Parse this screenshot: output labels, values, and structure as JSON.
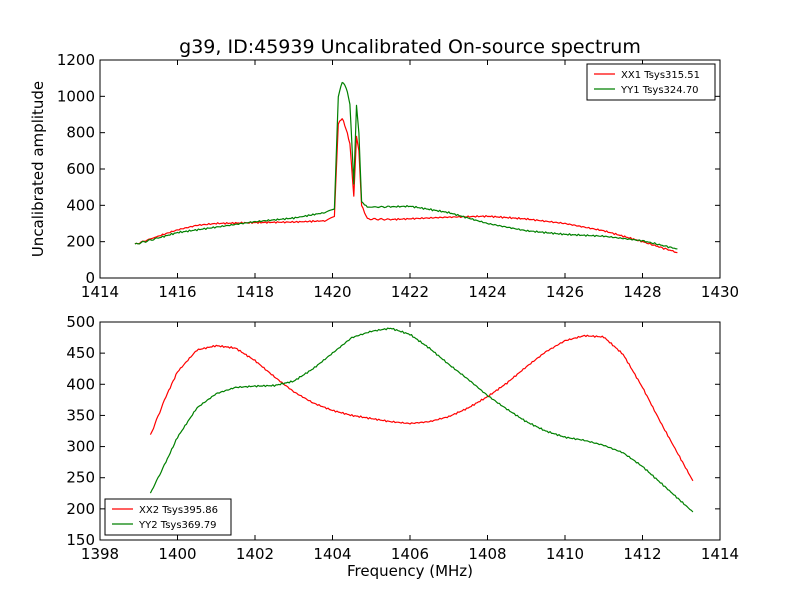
{
  "title": "g39, ID:45939 Uncalibrated On-source spectrum",
  "colors": {
    "red": "#ff0000",
    "green": "#008000"
  },
  "chart_data": [
    {
      "type": "line",
      "xlabel": "",
      "ylabel": "Uncalibrated amplitude",
      "xlim": [
        1414,
        1430
      ],
      "ylim": [
        0,
        1200
      ],
      "xticks": [
        1414,
        1416,
        1418,
        1420,
        1422,
        1424,
        1426,
        1428,
        1430
      ],
      "yticks": [
        0,
        200,
        400,
        600,
        800,
        1000,
        1200
      ],
      "legend_position": "top-right",
      "series": [
        {
          "name": "XX1 Tsys315.51",
          "color": "#ff0000",
          "x": [
            1414.9,
            1415.5,
            1416,
            1416.5,
            1417,
            1418,
            1419,
            1419.8,
            1420.05,
            1420.15,
            1420.25,
            1420.35,
            1420.45,
            1420.55,
            1420.62,
            1420.68,
            1420.75,
            1420.9,
            1421.5,
            1422,
            1423,
            1424,
            1425,
            1426,
            1427,
            1428,
            1428.9
          ],
          "y": [
            185,
            230,
            265,
            290,
            300,
            305,
            308,
            315,
            340,
            850,
            880,
            820,
            740,
            450,
            780,
            700,
            400,
            325,
            322,
            326,
            335,
            340,
            325,
            300,
            260,
            200,
            140
          ]
        },
        {
          "name": "YY1 Tsys324.70",
          "color": "#008000",
          "x": [
            1414.9,
            1415.5,
            1416,
            1416.5,
            1417,
            1418,
            1419,
            1419.8,
            1420.05,
            1420.15,
            1420.25,
            1420.35,
            1420.45,
            1420.55,
            1420.62,
            1420.68,
            1420.75,
            1420.9,
            1421.5,
            1422,
            1423,
            1424,
            1425,
            1426,
            1427,
            1428,
            1428.9
          ],
          "y": [
            185,
            220,
            250,
            265,
            280,
            310,
            330,
            360,
            380,
            1000,
            1080,
            1050,
            960,
            520,
            950,
            800,
            420,
            390,
            392,
            395,
            360,
            300,
            260,
            240,
            230,
            205,
            160
          ]
        }
      ]
    },
    {
      "type": "line",
      "xlabel": "Frequency (MHz)",
      "ylabel": "",
      "xlim": [
        1398,
        1414
      ],
      "ylim": [
        150,
        500
      ],
      "xticks": [
        1398,
        1400,
        1402,
        1404,
        1406,
        1408,
        1410,
        1412,
        1414
      ],
      "yticks": [
        150,
        200,
        250,
        300,
        350,
        400,
        450,
        500
      ],
      "legend_position": "bottom-left",
      "series": [
        {
          "name": "XX2 Tsys395.86",
          "color": "#ff0000",
          "x": [
            1399.3,
            1399.7,
            1400,
            1400.5,
            1401,
            1401.5,
            1402,
            1402.5,
            1403,
            1403.5,
            1404,
            1404.5,
            1405,
            1405.5,
            1406,
            1406.5,
            1407,
            1407.5,
            1408,
            1408.5,
            1409,
            1409.5,
            1410,
            1410.5,
            1411,
            1411.5,
            1412,
            1412.5,
            1413.3
          ],
          "y": [
            318,
            380,
            420,
            455,
            462,
            458,
            438,
            412,
            388,
            370,
            358,
            350,
            345,
            340,
            337,
            340,
            348,
            362,
            380,
            402,
            428,
            452,
            470,
            478,
            476,
            448,
            395,
            335,
            245
          ]
        },
        {
          "name": "YY2 Tsys369.79",
          "color": "#008000",
          "x": [
            1399.3,
            1399.7,
            1400,
            1400.5,
            1401,
            1401.5,
            1402,
            1402.5,
            1403,
            1403.5,
            1404,
            1404.5,
            1405,
            1405.5,
            1406,
            1406.5,
            1407,
            1407.5,
            1408,
            1408.5,
            1409,
            1409.5,
            1410,
            1410.5,
            1411,
            1411.5,
            1412,
            1412.5,
            1413.3
          ],
          "y": [
            225,
            275,
            315,
            362,
            385,
            395,
            397,
            398,
            405,
            425,
            450,
            475,
            485,
            490,
            480,
            458,
            432,
            408,
            382,
            360,
            340,
            325,
            315,
            310,
            302,
            290,
            268,
            240,
            195
          ]
        }
      ]
    }
  ]
}
